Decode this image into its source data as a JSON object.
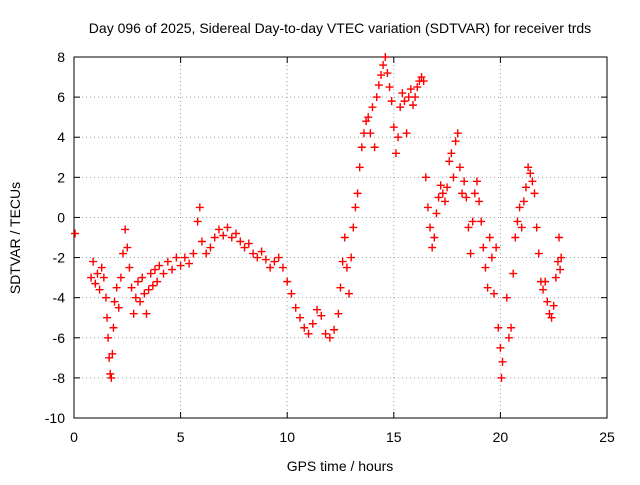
{
  "chart_data": {
    "type": "scatter",
    "title": "Day 096 of 2025, Sidereal Day-to-day VTEC variation (SDTVAR) for receiver trds",
    "xlabel": "GPS time / hours",
    "ylabel": "SDTVAR / TECUs",
    "xlim": [
      0,
      25
    ],
    "ylim": [
      -10,
      8
    ],
    "x_ticks": [
      0,
      5,
      10,
      15,
      20,
      25
    ],
    "x_tick_labels": [
      "0",
      "5",
      "10",
      "15",
      "20",
      "25"
    ],
    "y_ticks": [
      -10,
      -8,
      -6,
      -4,
      -2,
      0,
      2,
      4,
      6,
      8
    ],
    "y_tick_labels": [
      "-10",
      "-8",
      "-6",
      "-4",
      "-2",
      "0",
      "2",
      "4",
      "6",
      "8"
    ],
    "grid": true,
    "marker": "+",
    "series": [
      {
        "name": "SDTVAR",
        "color": "#ff0000",
        "points": [
          [
            0.05,
            -0.8
          ],
          [
            0.8,
            -3.0
          ],
          [
            0.9,
            -2.2
          ],
          [
            1.0,
            -3.3
          ],
          [
            1.1,
            -2.8
          ],
          [
            1.2,
            -3.6
          ],
          [
            1.3,
            -2.5
          ],
          [
            1.4,
            -3.0
          ],
          [
            1.5,
            -4.0
          ],
          [
            1.55,
            -5.0
          ],
          [
            1.6,
            -6.0
          ],
          [
            1.65,
            -7.0
          ],
          [
            1.7,
            -7.8
          ],
          [
            1.75,
            -8.0
          ],
          [
            1.8,
            -6.8
          ],
          [
            1.85,
            -5.5
          ],
          [
            1.9,
            -4.2
          ],
          [
            2.0,
            -3.5
          ],
          [
            2.1,
            -4.5
          ],
          [
            2.2,
            -3.0
          ],
          [
            2.3,
            -1.8
          ],
          [
            2.4,
            -0.6
          ],
          [
            2.5,
            -1.5
          ],
          [
            2.6,
            -2.5
          ],
          [
            2.7,
            -3.5
          ],
          [
            2.8,
            -4.8
          ],
          [
            2.9,
            -4.0
          ],
          [
            3.0,
            -3.2
          ],
          [
            3.1,
            -4.2
          ],
          [
            3.2,
            -3.0
          ],
          [
            3.3,
            -3.8
          ],
          [
            3.4,
            -4.8
          ],
          [
            3.5,
            -3.6
          ],
          [
            3.6,
            -2.8
          ],
          [
            3.7,
            -3.4
          ],
          [
            3.8,
            -2.6
          ],
          [
            3.9,
            -3.2
          ],
          [
            4.0,
            -2.4
          ],
          [
            4.2,
            -2.8
          ],
          [
            4.4,
            -2.2
          ],
          [
            4.6,
            -2.6
          ],
          [
            4.8,
            -2.0
          ],
          [
            5.0,
            -2.4
          ],
          [
            5.2,
            -2.0
          ],
          [
            5.4,
            -2.3
          ],
          [
            5.6,
            -1.8
          ],
          [
            5.8,
            -0.2
          ],
          [
            5.9,
            0.5
          ],
          [
            6.0,
            -1.2
          ],
          [
            6.2,
            -1.8
          ],
          [
            6.4,
            -1.5
          ],
          [
            6.6,
            -1.0
          ],
          [
            6.8,
            -0.6
          ],
          [
            7.0,
            -0.9
          ],
          [
            7.2,
            -0.5
          ],
          [
            7.4,
            -1.0
          ],
          [
            7.6,
            -0.8
          ],
          [
            7.8,
            -1.2
          ],
          [
            8.0,
            -1.5
          ],
          [
            8.2,
            -1.3
          ],
          [
            8.4,
            -1.8
          ],
          [
            8.6,
            -2.0
          ],
          [
            8.8,
            -1.7
          ],
          [
            9.0,
            -2.1
          ],
          [
            9.2,
            -2.5
          ],
          [
            9.4,
            -2.2
          ],
          [
            9.6,
            -2.0
          ],
          [
            9.8,
            -2.5
          ],
          [
            10.0,
            -3.2
          ],
          [
            10.2,
            -3.8
          ],
          [
            10.4,
            -4.5
          ],
          [
            10.6,
            -5.0
          ],
          [
            10.8,
            -5.5
          ],
          [
            11.0,
            -5.8
          ],
          [
            11.2,
            -5.3
          ],
          [
            11.4,
            -4.6
          ],
          [
            11.6,
            -4.9
          ],
          [
            11.8,
            -5.8
          ],
          [
            12.0,
            -6.0
          ],
          [
            12.2,
            -5.6
          ],
          [
            12.4,
            -4.8
          ],
          [
            12.5,
            -3.5
          ],
          [
            12.6,
            -2.2
          ],
          [
            12.7,
            -1.0
          ],
          [
            12.8,
            -2.5
          ],
          [
            12.9,
            -3.8
          ],
          [
            13.0,
            -2.0
          ],
          [
            13.1,
            -0.5
          ],
          [
            13.2,
            0.5
          ],
          [
            13.3,
            1.2
          ],
          [
            13.4,
            2.5
          ],
          [
            13.5,
            3.5
          ],
          [
            13.6,
            4.2
          ],
          [
            13.7,
            4.8
          ],
          [
            13.8,
            5.0
          ],
          [
            13.9,
            4.2
          ],
          [
            14.0,
            5.5
          ],
          [
            14.1,
            3.5
          ],
          [
            14.2,
            6.0
          ],
          [
            14.3,
            6.6
          ],
          [
            14.4,
            7.1
          ],
          [
            14.5,
            7.6
          ],
          [
            14.6,
            8.0
          ],
          [
            14.7,
            7.2
          ],
          [
            14.8,
            6.5
          ],
          [
            14.9,
            5.8
          ],
          [
            15.0,
            4.5
          ],
          [
            15.1,
            3.2
          ],
          [
            15.2,
            4.0
          ],
          [
            15.3,
            5.5
          ],
          [
            15.4,
            6.2
          ],
          [
            15.5,
            5.8
          ],
          [
            15.6,
            4.2
          ],
          [
            15.7,
            6.0
          ],
          [
            15.8,
            6.4
          ],
          [
            15.9,
            5.6
          ],
          [
            16.0,
            6.0
          ],
          [
            16.1,
            6.5
          ],
          [
            16.2,
            6.8
          ],
          [
            16.3,
            7.0
          ],
          [
            16.4,
            6.8
          ],
          [
            16.5,
            2.0
          ],
          [
            16.6,
            0.5
          ],
          [
            16.7,
            -0.5
          ],
          [
            16.8,
            -1.5
          ],
          [
            16.9,
            -1.0
          ],
          [
            17.0,
            0.2
          ],
          [
            17.1,
            1.0
          ],
          [
            17.2,
            1.6
          ],
          [
            17.3,
            1.2
          ],
          [
            17.4,
            0.8
          ],
          [
            17.5,
            1.5
          ],
          [
            17.6,
            2.8
          ],
          [
            17.7,
            3.2
          ],
          [
            17.8,
            2.0
          ],
          [
            17.9,
            3.8
          ],
          [
            18.0,
            4.2
          ],
          [
            18.1,
            2.5
          ],
          [
            18.2,
            1.2
          ],
          [
            18.3,
            1.8
          ],
          [
            18.4,
            1.0
          ],
          [
            18.5,
            -0.5
          ],
          [
            18.6,
            -1.8
          ],
          [
            18.7,
            -0.2
          ],
          [
            18.8,
            1.2
          ],
          [
            18.9,
            1.8
          ],
          [
            19.0,
            0.8
          ],
          [
            19.1,
            -0.2
          ],
          [
            19.2,
            -1.5
          ],
          [
            19.3,
            -2.5
          ],
          [
            19.4,
            -3.5
          ],
          [
            19.5,
            -1.0
          ],
          [
            19.6,
            -2.0
          ],
          [
            19.7,
            -3.8
          ],
          [
            19.8,
            -1.5
          ],
          [
            19.9,
            -5.5
          ],
          [
            20.0,
            -6.5
          ],
          [
            20.05,
            -8.0
          ],
          [
            20.1,
            -7.2
          ],
          [
            20.3,
            -4.0
          ],
          [
            20.4,
            -6.0
          ],
          [
            20.5,
            -5.5
          ],
          [
            20.6,
            -2.8
          ],
          [
            20.7,
            -1.0
          ],
          [
            20.8,
            -0.2
          ],
          [
            20.9,
            0.5
          ],
          [
            21.0,
            -0.5
          ],
          [
            21.1,
            0.8
          ],
          [
            21.2,
            1.5
          ],
          [
            21.3,
            2.5
          ],
          [
            21.4,
            2.2
          ],
          [
            21.5,
            1.8
          ],
          [
            21.6,
            1.2
          ],
          [
            21.7,
            -0.5
          ],
          [
            21.8,
            -1.8
          ],
          [
            21.9,
            -3.2
          ],
          [
            22.0,
            -3.6
          ],
          [
            22.1,
            -3.2
          ],
          [
            22.2,
            -4.2
          ],
          [
            22.3,
            -4.8
          ],
          [
            22.4,
            -5.0
          ],
          [
            22.5,
            -4.4
          ],
          [
            22.6,
            -3.0
          ],
          [
            22.7,
            -2.2
          ],
          [
            22.75,
            -1.0
          ],
          [
            22.8,
            -2.6
          ],
          [
            22.85,
            -2.0
          ]
        ]
      }
    ]
  }
}
